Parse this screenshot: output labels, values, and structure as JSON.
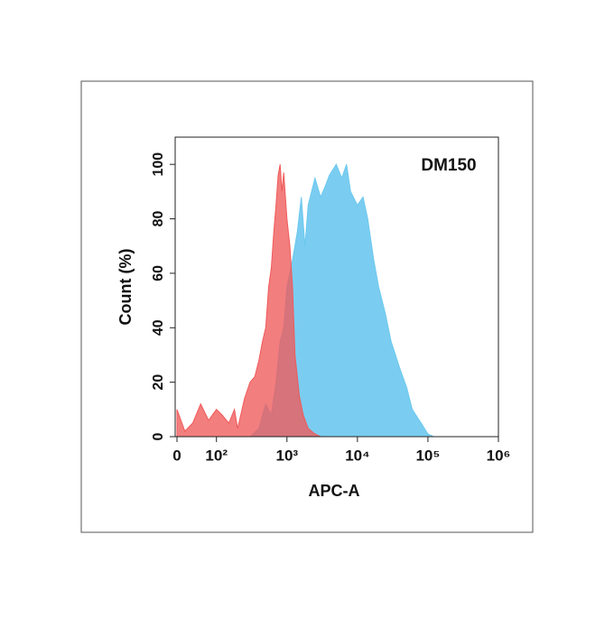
{
  "chart_data": {
    "type": "area",
    "annotation": "DM150",
    "xlabel": "APC-A",
    "ylabel": "Count  (%)",
    "xscale": "symlog",
    "xlim": [
      0,
      1000000
    ],
    "xticks": [
      0,
      {
        "value": 100,
        "label": "10²"
      },
      {
        "value": 1000,
        "label": "10³"
      },
      {
        "value": 10000,
        "label": "10⁴"
      },
      {
        "value": 100000,
        "label": "10⁵"
      },
      {
        "value": 1000000,
        "label": "10⁶"
      }
    ],
    "ylim": [
      0,
      110
    ],
    "yticks": [
      0,
      20,
      40,
      60,
      80,
      100
    ],
    "series": [
      {
        "color": "#6cc8ee",
        "x": [
          300,
          400,
          500,
          600,
          700,
          800,
          900,
          1000,
          1200,
          1400,
          1600,
          1800,
          2000,
          2500,
          3000,
          3500,
          4000,
          5000,
          6000,
          7000,
          8000,
          10000,
          12000,
          14000,
          17000,
          20000,
          25000,
          30000,
          40000,
          50000,
          60000,
          80000,
          100000,
          120000
        ],
        "values": [
          0,
          3,
          12,
          8,
          20,
          35,
          40,
          55,
          65,
          75,
          88,
          70,
          85,
          95,
          88,
          92,
          96,
          100,
          95,
          100,
          90,
          85,
          88,
          80,
          65,
          55,
          45,
          35,
          25,
          18,
          10,
          5,
          1,
          0
        ]
      },
      {
        "color": "#f05a5a",
        "x": [
          0,
          20,
          40,
          60,
          80,
          100,
          120,
          150,
          180,
          200,
          250,
          300,
          350,
          400,
          450,
          500,
          550,
          600,
          650,
          700,
          750,
          800,
          850,
          900,
          1000,
          1100,
          1200,
          1300,
          1500,
          1700,
          2000,
          2500,
          3000
        ],
        "values": [
          10,
          2,
          5,
          12,
          6,
          10,
          8,
          5,
          10,
          3,
          14,
          20,
          22,
          28,
          35,
          40,
          55,
          62,
          75,
          85,
          96,
          100,
          90,
          97,
          80,
          70,
          55,
          30,
          15,
          8,
          3,
          1,
          0
        ]
      }
    ]
  }
}
